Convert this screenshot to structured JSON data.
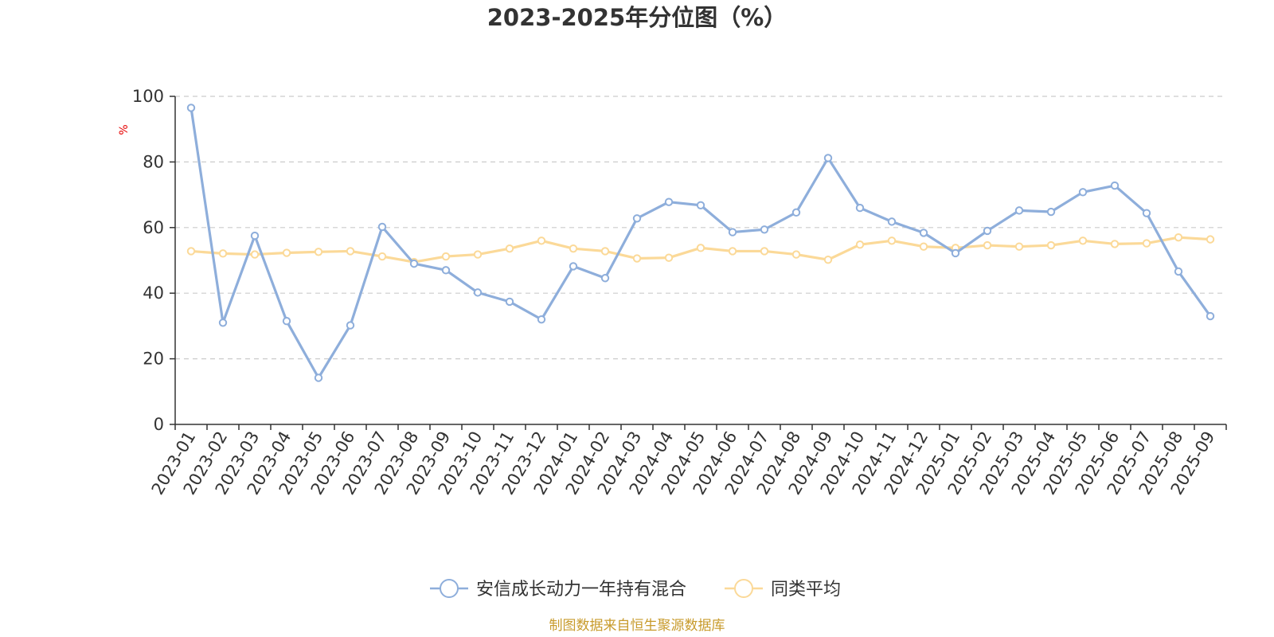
{
  "chart_data": {
    "type": "line",
    "title": "2023-2025年分位图（%）",
    "y_unit": "%",
    "ylim": [
      0,
      100
    ],
    "y_ticks": [
      0,
      20,
      40,
      60,
      80,
      100
    ],
    "grid": true,
    "legend_position": "bottom-center",
    "categories": [
      "2023-01",
      "2023-02",
      "2023-03",
      "2023-04",
      "2023-05",
      "2023-06",
      "2023-07",
      "2023-08",
      "2023-09",
      "2023-10",
      "2023-11",
      "2023-12",
      "2024-01",
      "2024-02",
      "2024-03",
      "2024-04",
      "2024-05",
      "2024-06",
      "2024-07",
      "2024-08",
      "2024-09",
      "2024-10",
      "2024-11",
      "2024-12",
      "2025-01",
      "2025-02",
      "2025-03",
      "2025-04",
      "2025-05",
      "2025-06",
      "2025-07",
      "2025-08",
      "2025-09"
    ],
    "series": [
      {
        "name": "安信成长动力一年持有混合",
        "color": "#8eaedb",
        "values": [
          96.5,
          31.0,
          57.5,
          31.5,
          14.2,
          30.2,
          60.2,
          49.0,
          47.0,
          40.2,
          37.4,
          32.0,
          48.2,
          44.6,
          62.8,
          67.8,
          66.8,
          58.6,
          59.4,
          64.6,
          81.2,
          66.0,
          61.8,
          58.4,
          52.2,
          59.0,
          65.2,
          64.8,
          70.8,
          72.8,
          64.4,
          46.6,
          33.0
        ]
      },
      {
        "name": "同类平均",
        "color": "#fbd998",
        "values": [
          52.8,
          52.1,
          51.8,
          52.3,
          52.6,
          52.8,
          51.2,
          49.5,
          51.2,
          51.8,
          53.6,
          56.0,
          53.6,
          52.8,
          50.6,
          50.8,
          53.8,
          52.8,
          52.8,
          51.8,
          50.2,
          54.8,
          56.0,
          54.2,
          53.8,
          54.6,
          54.2,
          54.6,
          56.0,
          55.0,
          55.2,
          57.0,
          56.4
        ]
      }
    ]
  },
  "source_text": "制图数据来自恒生聚源数据库"
}
